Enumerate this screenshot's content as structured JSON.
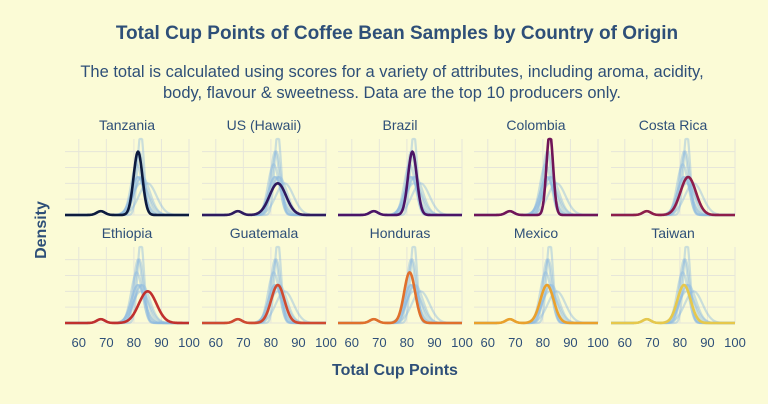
{
  "chart_data": {
    "type": "line",
    "title": "Total Cup Points of Coffee Bean Samples by Country of Origin",
    "subtitle_lines": [
      "The total is calculated using scores for a variety of attributes, including aroma, acidity,",
      "body, flavour & sweetness. Data are the top 10 producers only."
    ],
    "xlabel": "Total Cup Points",
    "ylabel": "Density",
    "xlim": [
      55,
      100
    ],
    "ylim": [
      0,
      0.24
    ],
    "x_ticks": [
      "60",
      "70",
      "80",
      "90",
      "100"
    ],
    "grid": true,
    "background_style": "light blue density curves of all countries behind each panel",
    "facets": [
      {
        "country": "Tanzania",
        "color": "#0d1b3e",
        "peak_x": 81.5,
        "peak_density": 0.2,
        "spread": 1.6
      },
      {
        "country": "US (Hawaii)",
        "color": "#2e1a5e",
        "peak_x": 82.5,
        "peak_density": 0.1,
        "spread": 3.0
      },
      {
        "country": "Brazil",
        "color": "#4b1466",
        "peak_x": 82.0,
        "peak_density": 0.2,
        "spread": 1.6
      },
      {
        "country": "Colombia",
        "color": "#701457",
        "peak_x": 82.5,
        "peak_density": 0.26,
        "spread": 1.2
      },
      {
        "country": "Costa Rica",
        "color": "#8e1d4a",
        "peak_x": 83.0,
        "peak_density": 0.12,
        "spread": 2.8
      },
      {
        "country": "Ethiopia",
        "color": "#c0302e",
        "peak_x": 85.0,
        "peak_density": 0.1,
        "spread": 3.2
      },
      {
        "country": "Guatemala",
        "color": "#cf4a30",
        "peak_x": 82.5,
        "peak_density": 0.12,
        "spread": 2.4
      },
      {
        "country": "Honduras",
        "color": "#e0702c",
        "peak_x": 81.0,
        "peak_density": 0.16,
        "spread": 2.0
      },
      {
        "country": "Mexico",
        "color": "#eaa12c",
        "peak_x": 81.5,
        "peak_density": 0.12,
        "spread": 2.4
      },
      {
        "country": "Taiwan",
        "color": "#e6c84c",
        "peak_x": 81.5,
        "peak_density": 0.12,
        "spread": 2.4
      }
    ]
  }
}
